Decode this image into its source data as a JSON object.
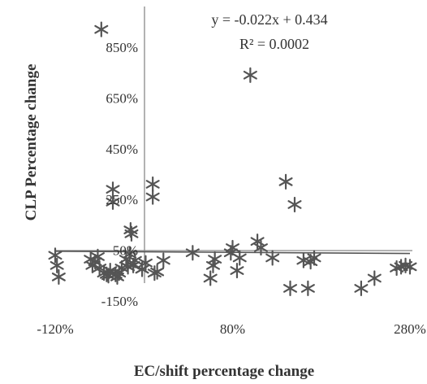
{
  "chart_data": {
    "type": "scatter",
    "xlabel": "EC/shift percentage change",
    "ylabel": "CLP Percentage change",
    "x_unit": "%",
    "y_unit": "%",
    "xlim": [
      -120,
      280
    ],
    "ylim": [
      -150,
      850
    ],
    "x_ticks": [
      "-120%",
      "80%",
      "280%"
    ],
    "y_ticks": [
      "850%",
      "650%",
      "450%",
      "250%",
      "50%",
      "-150%"
    ],
    "x_tick_values": [
      -120,
      80,
      280
    ],
    "y_tick_values": [
      850,
      650,
      450,
      250,
      50,
      -150
    ],
    "marker_color": "#555555",
    "line_color": "#555555",
    "trendline": {
      "equation": "y = -0.022x + 0.434",
      "r_squared": "R² = 0.0002",
      "slope": -0.022,
      "intercept_pct": 43.4
    },
    "points": [
      {
        "x": -120,
        "y": 30
      },
      {
        "x": -118,
        "y": -10
      },
      {
        "x": -116,
        "y": -55
      },
      {
        "x": -80,
        "y": 15
      },
      {
        "x": -78,
        "y": -10
      },
      {
        "x": -75,
        "y": 5
      },
      {
        "x": -72,
        "y": 25
      },
      {
        "x": -70,
        "y": -20
      },
      {
        "x": -68,
        "y": 920
      },
      {
        "x": -65,
        "y": -40
      },
      {
        "x": -62,
        "y": -45
      },
      {
        "x": -60,
        "y": -50
      },
      {
        "x": -58,
        "y": -30
      },
      {
        "x": -55,
        "y": 290
      },
      {
        "x": -55,
        "y": 240
      },
      {
        "x": -52,
        "y": -45
      },
      {
        "x": -50,
        "y": -55
      },
      {
        "x": -48,
        "y": -40
      },
      {
        "x": -45,
        "y": -20
      },
      {
        "x": -40,
        "y": 15
      },
      {
        "x": -38,
        "y": -15
      },
      {
        "x": -36,
        "y": 35
      },
      {
        "x": -35,
        "y": 130
      },
      {
        "x": -34,
        "y": 115
      },
      {
        "x": -32,
        "y": -10
      },
      {
        "x": -30,
        "y": 10
      },
      {
        "x": -22,
        "y": -25
      },
      {
        "x": -18,
        "y": 0
      },
      {
        "x": -10,
        "y": 310
      },
      {
        "x": -10,
        "y": 260
      },
      {
        "x": -8,
        "y": -40
      },
      {
        "x": -5,
        "y": -35
      },
      {
        "x": 2,
        "y": 10
      },
      {
        "x": 35,
        "y": 40
      },
      {
        "x": 55,
        "y": -60
      },
      {
        "x": 58,
        "y": -10
      },
      {
        "x": 60,
        "y": 15
      },
      {
        "x": 78,
        "y": 40
      },
      {
        "x": 80,
        "y": 60
      },
      {
        "x": 85,
        "y": -30
      },
      {
        "x": 88,
        "y": 20
      },
      {
        "x": 100,
        "y": 740
      },
      {
        "x": 108,
        "y": 85
      },
      {
        "x": 112,
        "y": 60
      },
      {
        "x": 125,
        "y": 20
      },
      {
        "x": 140,
        "y": 320
      },
      {
        "x": 145,
        "y": -100
      },
      {
        "x": 150,
        "y": 230
      },
      {
        "x": 160,
        "y": 10
      },
      {
        "x": 165,
        "y": -100
      },
      {
        "x": 168,
        "y": 5
      },
      {
        "x": 172,
        "y": 20
      },
      {
        "x": 225,
        "y": -100
      },
      {
        "x": 240,
        "y": -60
      },
      {
        "x": 265,
        "y": -20
      },
      {
        "x": 270,
        "y": -15
      },
      {
        "x": 275,
        "y": -10
      },
      {
        "x": 280,
        "y": -15
      }
    ]
  }
}
